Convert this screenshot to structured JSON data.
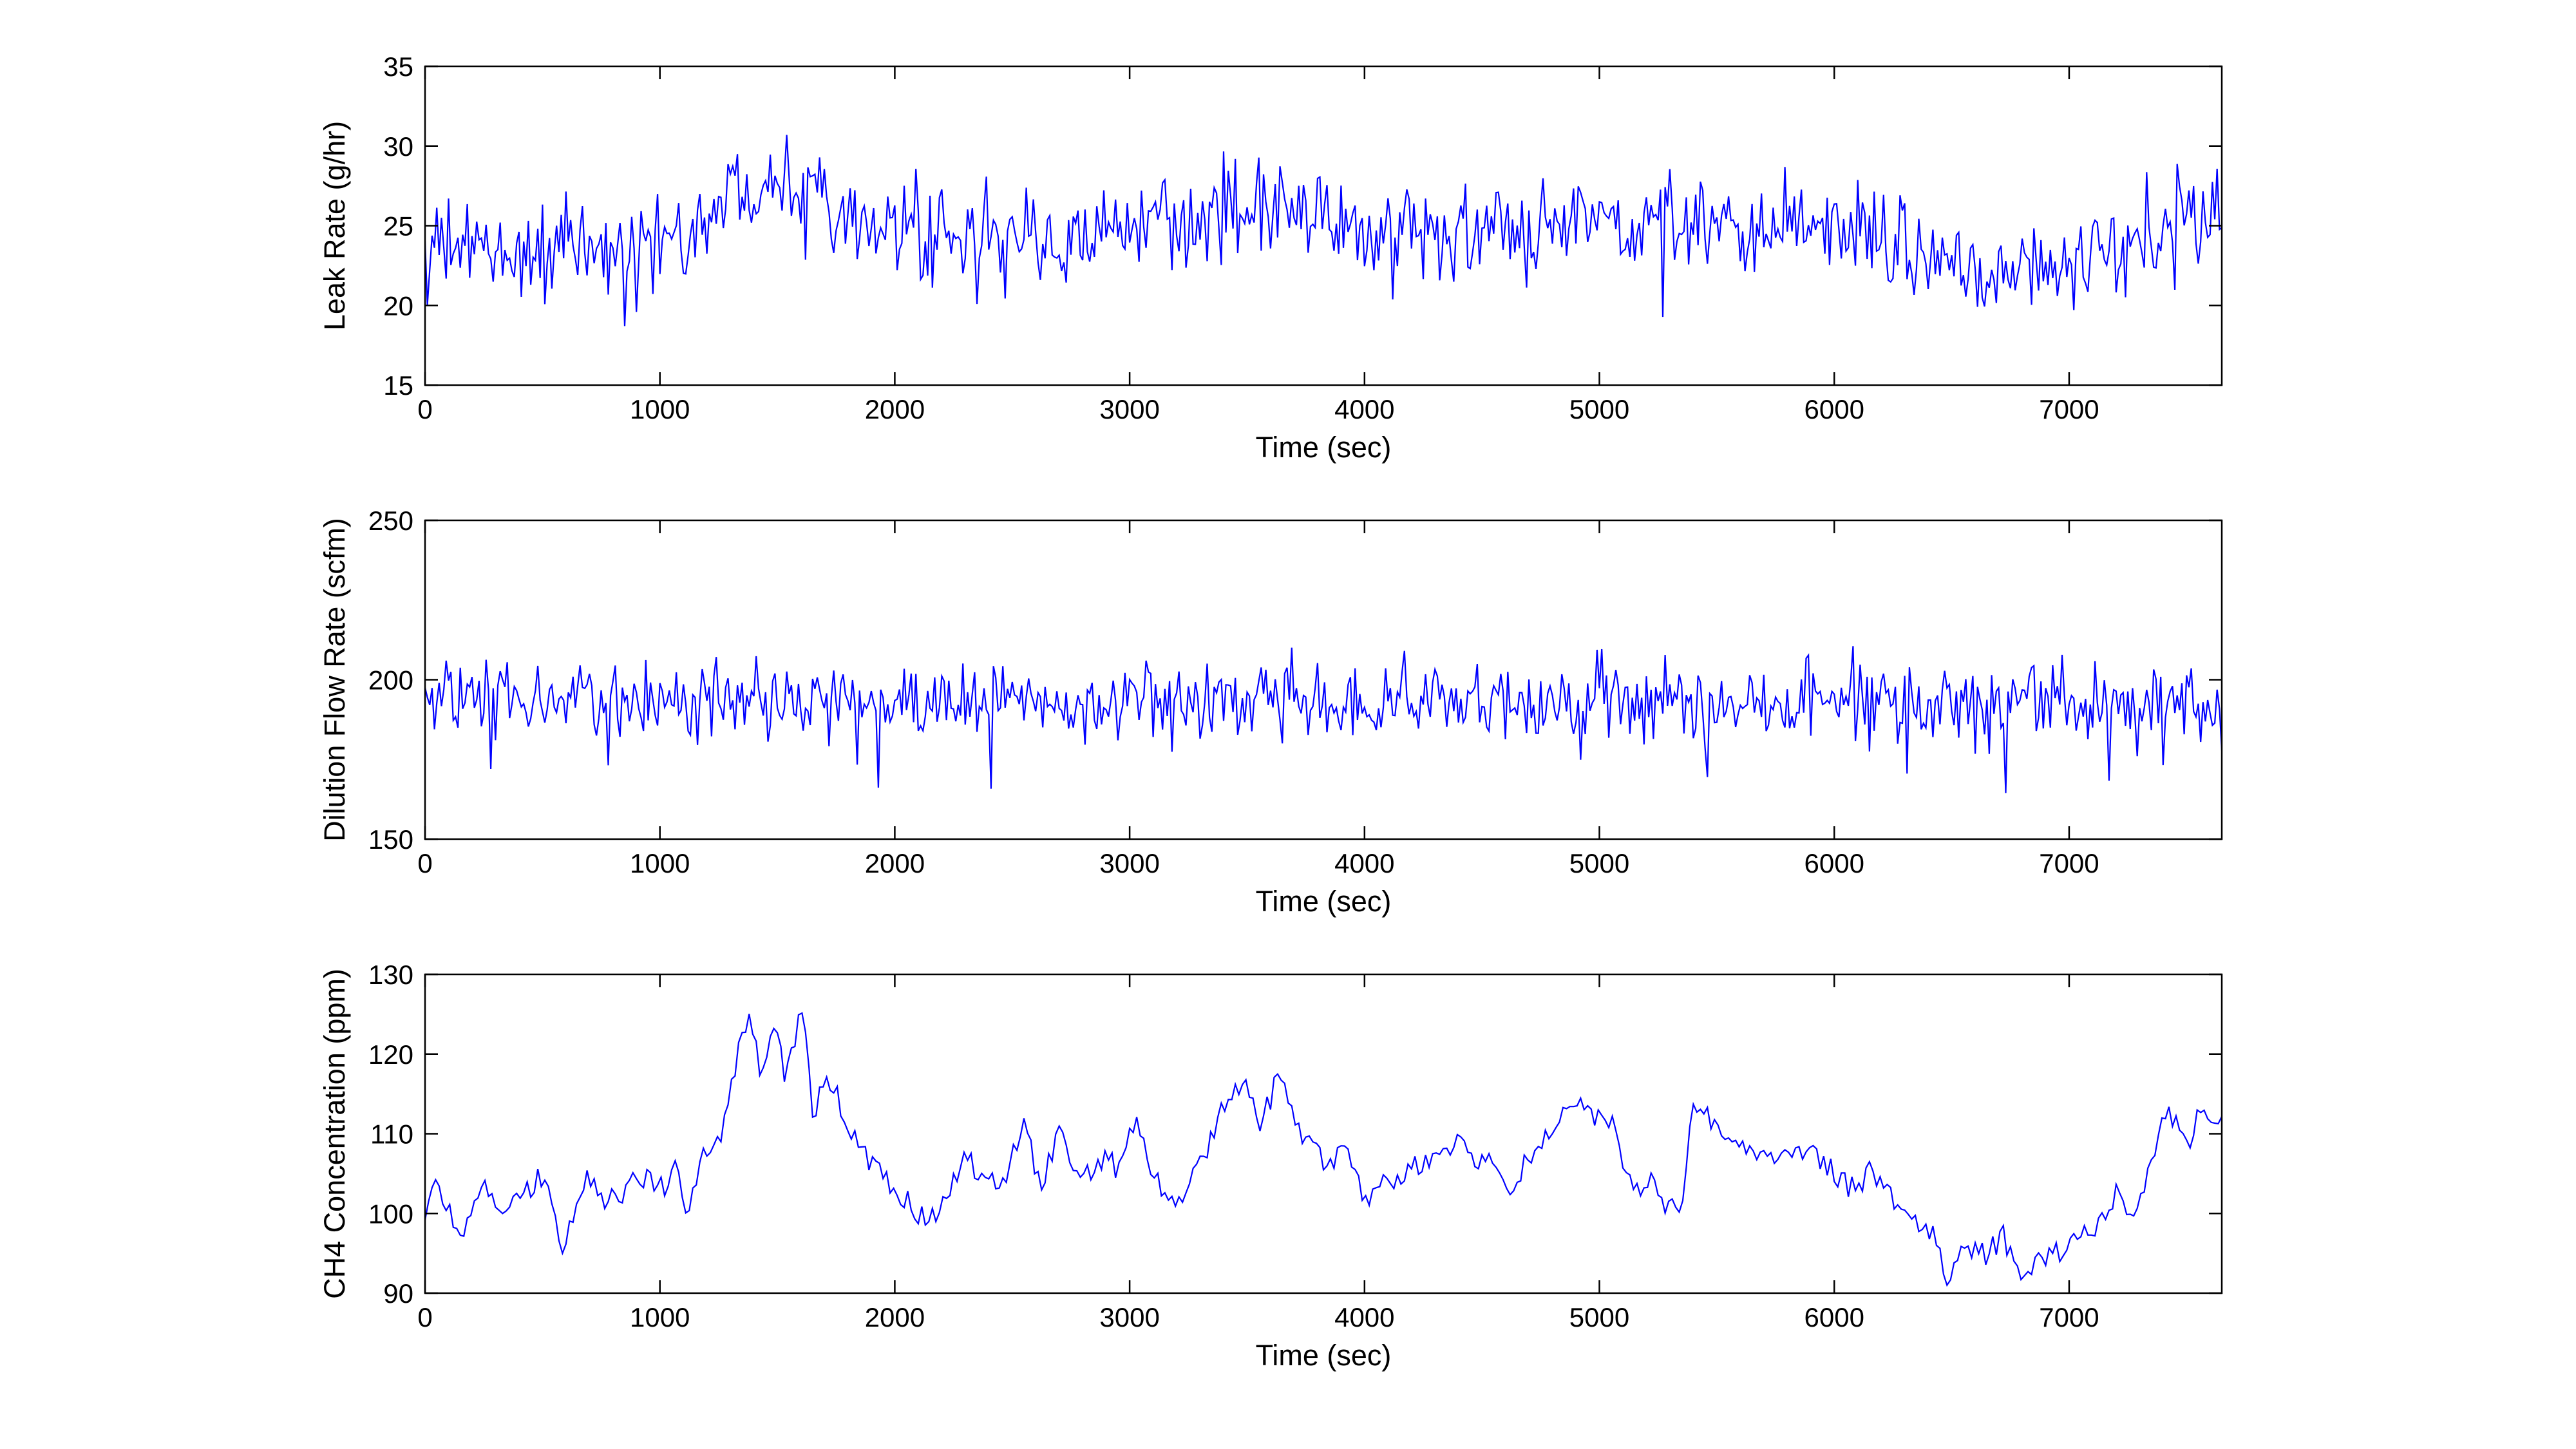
{
  "figure": {
    "background": "#ffffff",
    "axes_color": "#000000",
    "line_color": "#0000ff"
  },
  "chart_data": [
    {
      "type": "line",
      "title": "",
      "xlabel": "Time (sec)",
      "ylabel": "Leak Rate (g/hr)",
      "xlim": [
        0,
        7650
      ],
      "ylim": [
        15,
        35
      ],
      "xticks": [
        0,
        1000,
        2000,
        3000,
        4000,
        5000,
        6000,
        7000
      ],
      "yticks": [
        15,
        20,
        25,
        30,
        35
      ],
      "x_step": 10,
      "noise_amplitude": 2.2,
      "spike_amplitude": 4.5,
      "series": [
        {
          "color": "#0000ff",
          "mean_trend": [
            [
              0,
              23.5
            ],
            [
              500,
              23.3
            ],
            [
              900,
              23.5
            ],
            [
              1150,
              25.0
            ],
            [
              1300,
              27.0
            ],
            [
              1450,
              28.5
            ],
            [
              1600,
              28.3
            ],
            [
              1750,
              26.5
            ],
            [
              1900,
              25.0
            ],
            [
              2100,
              24.0
            ],
            [
              2500,
              24.2
            ],
            [
              3000,
              24.5
            ],
            [
              3200,
              24.3
            ],
            [
              3400,
              26.3
            ],
            [
              3650,
              26.5
            ],
            [
              3850,
              25.0
            ],
            [
              4100,
              24.3
            ],
            [
              4600,
              24.5
            ],
            [
              4900,
              25.5
            ],
            [
              5200,
              24.5
            ],
            [
              5400,
              25.3
            ],
            [
              5800,
              25.0
            ],
            [
              6100,
              24.3
            ],
            [
              6400,
              23.5
            ],
            [
              6800,
              22.0
            ],
            [
              7100,
              22.5
            ],
            [
              7400,
              24.5
            ],
            [
              7650,
              25.8
            ]
          ]
        }
      ]
    },
    {
      "type": "line",
      "title": "",
      "xlabel": "Time (sec)",
      "ylabel": "Dilution Flow Rate (scfm)",
      "xlim": [
        0,
        7650
      ],
      "ylim": [
        150,
        250
      ],
      "xticks": [
        0,
        1000,
        2000,
        3000,
        4000,
        5000,
        6000,
        7000
      ],
      "yticks": [
        150,
        200,
        250
      ],
      "x_step": 10,
      "noise_amplitude": 9,
      "spike_amplitude": 20,
      "series": [
        {
          "color": "#0000ff",
          "mean_trend": [
            [
              0,
              193
            ],
            [
              2000,
              193
            ],
            [
              4000,
              193
            ],
            [
              6000,
              193
            ],
            [
              7650,
              193
            ]
          ]
        }
      ]
    },
    {
      "type": "line",
      "title": "",
      "xlabel": "Time (sec)",
      "ylabel": "CH4 Concentration (ppm)",
      "xlim": [
        0,
        7650
      ],
      "ylim": [
        90,
        130
      ],
      "xticks": [
        0,
        1000,
        2000,
        3000,
        4000,
        5000,
        6000,
        7000
      ],
      "yticks": [
        90,
        100,
        110,
        120,
        130
      ],
      "x_step": 15,
      "noise_amplitude": 1.5,
      "spike_amplitude": 0,
      "series": [
        {
          "color": "#0000ff",
          "values_xy": [
            [
              0,
              100
            ],
            [
              50,
              104
            ],
            [
              100,
              100
            ],
            [
              180,
              98
            ],
            [
              250,
              103
            ],
            [
              330,
              100
            ],
            [
              420,
              102
            ],
            [
              500,
              105
            ],
            [
              580,
              96
            ],
            [
              650,
              100
            ],
            [
              700,
              105
            ],
            [
              760,
              101
            ],
            [
              850,
              103
            ],
            [
              950,
              105
            ],
            [
              1020,
              103
            ],
            [
              1080,
              106
            ],
            [
              1110,
              99
            ],
            [
              1180,
              108
            ],
            [
              1250,
              109
            ],
            [
              1300,
              116
            ],
            [
              1350,
              122
            ],
            [
              1380,
              125
            ],
            [
              1430,
              117
            ],
            [
              1480,
              124
            ],
            [
              1530,
              118
            ],
            [
              1580,
              122
            ],
            [
              1610,
              127
            ],
            [
              1650,
              112
            ],
            [
              1700,
              117
            ],
            [
              1750,
              115
            ],
            [
              1820,
              110
            ],
            [
              1900,
              106
            ],
            [
              2000,
              103
            ],
            [
              2100,
              100
            ],
            [
              2160,
              100
            ],
            [
              2230,
              102
            ],
            [
              2290,
              107
            ],
            [
              2380,
              105
            ],
            [
              2450,
              103
            ],
            [
              2550,
              112
            ],
            [
              2620,
              103
            ],
            [
              2700,
              111
            ],
            [
              2800,
              104
            ],
            [
              2900,
              107
            ],
            [
              2960,
              105
            ],
            [
              3020,
              112
            ],
            [
              3100,
              105
            ],
            [
              3200,
              101
            ],
            [
              3280,
              107
            ],
            [
              3350,
              109
            ],
            [
              3420,
              115
            ],
            [
              3500,
              116
            ],
            [
              3560,
              111
            ],
            [
              3630,
              117
            ],
            [
              3700,
              112
            ],
            [
              3780,
              108
            ],
            [
              3850,
              106
            ],
            [
              3920,
              108
            ],
            [
              4000,
              102
            ],
            [
              4100,
              104
            ],
            [
              4200,
              106
            ],
            [
              4300,
              107
            ],
            [
              4400,
              109
            ],
            [
              4460,
              106
            ],
            [
              4540,
              108
            ],
            [
              4620,
              103
            ],
            [
              4700,
              107
            ],
            [
              4800,
              110
            ],
            [
              4880,
              114
            ],
            [
              4960,
              112
            ],
            [
              5050,
              112
            ],
            [
              5120,
              105
            ],
            [
              5180,
              103
            ],
            [
              5240,
              104
            ],
            [
              5300,
              100
            ],
            [
              5360,
              102
            ],
            [
              5400,
              115
            ],
            [
              5450,
              112
            ],
            [
              5520,
              111
            ],
            [
              5580,
              110
            ],
            [
              5650,
              108
            ],
            [
              5720,
              106
            ],
            [
              5800,
              108
            ],
            [
              5900,
              108
            ],
            [
              6000,
              105
            ],
            [
              6080,
              103
            ],
            [
              6150,
              105
            ],
            [
              6250,
              102
            ],
            [
              6350,
              99
            ],
            [
              6420,
              97
            ],
            [
              6480,
              92
            ],
            [
              6550,
              96
            ],
            [
              6650,
              95
            ],
            [
              6720,
              97
            ],
            [
              6800,
              92
            ],
            [
              6880,
              94
            ],
            [
              6950,
              95
            ],
            [
              7050,
              97
            ],
            [
              7120,
              98
            ],
            [
              7200,
              103
            ],
            [
              7280,
              100
            ],
            [
              7350,
              106
            ],
            [
              7420,
              113
            ],
            [
              7500,
              108
            ],
            [
              7560,
              113
            ],
            [
              7600,
              110
            ],
            [
              7650,
              111
            ]
          ]
        }
      ]
    }
  ]
}
